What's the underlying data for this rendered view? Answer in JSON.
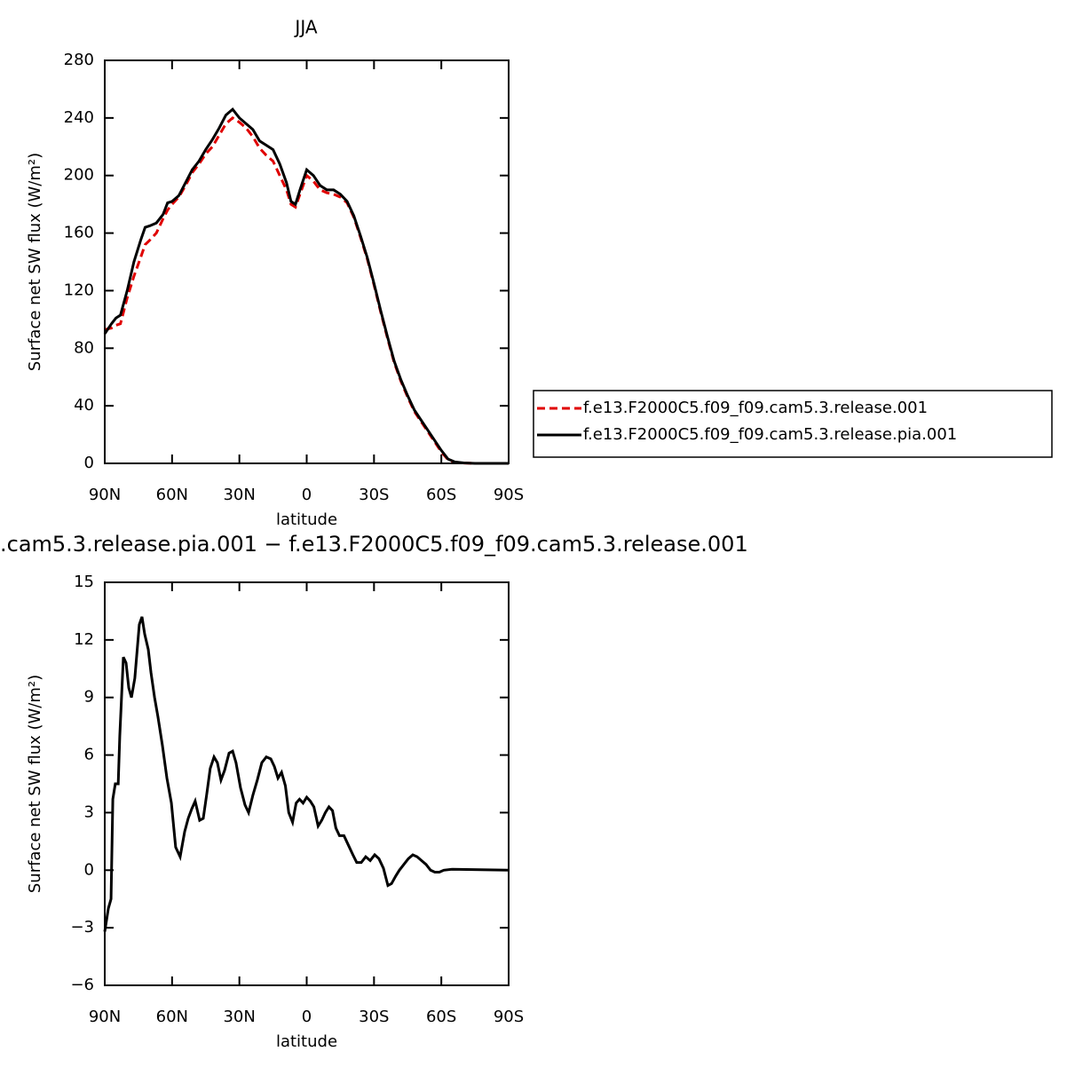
{
  "chart_data": [
    {
      "type": "line",
      "title": "JJA",
      "xlabel": "latitude",
      "ylabel": "Surface net SW flux (W/m²)",
      "xlim": [
        90,
        -90
      ],
      "ylim": [
        0,
        280
      ],
      "xticks": [
        {
          "value": 90,
          "label": "90N"
        },
        {
          "value": 60,
          "label": "60N"
        },
        {
          "value": 30,
          "label": "30N"
        },
        0,
        {
          "value": -30,
          "label": "30S"
        },
        {
          "value": -60,
          "label": "60S"
        },
        {
          "value": -90,
          "label": "90S"
        }
      ],
      "yticks": [
        0,
        40,
        80,
        120,
        160,
        200,
        240,
        280
      ],
      "legend": "right",
      "x": [
        90,
        87,
        85,
        83,
        80,
        77,
        74,
        72,
        70,
        67,
        64,
        62,
        60,
        57,
        54,
        51,
        48,
        45,
        42,
        39,
        36,
        33,
        30,
        27,
        24,
        21,
        18,
        15,
        12,
        9,
        7,
        5,
        3,
        0,
        -3,
        -6,
        -9,
        -12,
        -15,
        -18,
        -21,
        -24,
        -27,
        -30,
        -33,
        -36,
        -39,
        -42,
        -45,
        -48,
        -51,
        -54,
        -57,
        -60,
        -63,
        -66,
        -70,
        -75,
        -80,
        -85,
        -90
      ],
      "series": [
        {
          "name": "f.e13.F2000C5.f09_f09.cam5.3.release.001",
          "color": "#e00000",
          "dash": true,
          "values": [
            93,
            94,
            96,
            97,
            115,
            130,
            143,
            152,
            155,
            160,
            170,
            176,
            180,
            185,
            193,
            202,
            208,
            215,
            220,
            228,
            236,
            240,
            237,
            233,
            227,
            219,
            214,
            210,
            200,
            190,
            180,
            178,
            187,
            200,
            196,
            190,
            188,
            187,
            185,
            181,
            171,
            157,
            142,
            124,
            105,
            87,
            70,
            57,
            46,
            36,
            29,
            22,
            15,
            8,
            2.5,
            0.8,
            0.2,
            0,
            0,
            0,
            0
          ]
        },
        {
          "name": "f.e13.F2000C5.f09_f09.cam5.3.release.pia.001",
          "color": "#000000",
          "dash": false,
          "values": [
            90,
            97,
            101,
            103,
            120,
            140,
            155,
            164,
            165,
            167,
            173,
            181,
            182,
            186,
            195,
            204,
            210,
            218,
            225,
            233,
            242,
            246,
            240,
            236,
            232,
            224,
            221,
            218,
            208,
            195,
            182,
            180,
            190,
            204,
            200,
            193,
            190,
            190,
            187,
            182,
            172,
            158,
            143,
            125,
            106,
            88,
            71,
            58,
            47,
            37,
            30,
            23,
            16,
            9,
            3,
            1,
            0.3,
            0,
            0,
            0,
            0
          ]
        }
      ]
    },
    {
      "type": "line",
      "title": ".cam5.3.release.pia.001 − f.e13.F2000C5.f09_f09.cam5.3.release.001",
      "xlabel": "latitude",
      "ylabel": "Surface net SW flux (W/m²)",
      "xlim": [
        90,
        -90
      ],
      "ylim": [
        -6,
        15
      ],
      "xticks": [
        {
          "value": 90,
          "label": "90N"
        },
        {
          "value": 60,
          "label": "60N"
        },
        {
          "value": 30,
          "label": "30N"
        },
        0,
        {
          "value": -30,
          "label": "30S"
        },
        {
          "value": -60,
          "label": "60S"
        },
        {
          "value": -90,
          "label": "90S"
        }
      ],
      "yticks": [
        {
          "value": -6,
          "label": "−6"
        },
        {
          "value": -3,
          "label": "−3"
        },
        0,
        3,
        6,
        9,
        12,
        15
      ],
      "x": [
        90,
        88.4,
        87.2,
        86.4,
        85.3,
        84,
        83.3,
        81.7,
        80.5,
        79.3,
        78.1,
        76.6,
        74.6,
        73.4,
        72.2,
        70.6,
        69.4,
        67.8,
        66.3,
        64.3,
        62.3,
        60.3,
        58.4,
        56.4,
        54.4,
        52.8,
        51.2,
        49.7,
        47.7,
        46.1,
        44.5,
        43,
        41.3,
        39.8,
        38.2,
        36.6,
        34.6,
        33,
        31.5,
        29.5,
        27.5,
        25.9,
        24,
        22,
        20,
        18,
        16,
        14.4,
        12.8,
        11.2,
        9.5,
        8,
        6.3,
        4.7,
        3.2,
        1.6,
        0,
        -1.6,
        -3.2,
        -5.1,
        -6.7,
        -8.3,
        -9.9,
        -11.5,
        -13,
        -14.6,
        -16.6,
        -18.6,
        -20.6,
        -22.3,
        -24.3,
        -26.3,
        -28.3,
        -30.3,
        -32.2,
        -34.2,
        -36.2,
        -37.8,
        -39.7,
        -41.3,
        -43.3,
        -45.3,
        -47.3,
        -49.2,
        -51.2,
        -53.2,
        -55.2,
        -57.1,
        -59.1,
        -61.1,
        -65,
        -90
      ],
      "series": [
        {
          "color": "#000000",
          "dash": false,
          "values": [
            -3.2,
            -2,
            -1.5,
            3.7,
            4.5,
            4.5,
            7,
            11.1,
            10.8,
            9.5,
            9,
            10,
            12.8,
            13.2,
            12.3,
            11.5,
            10.3,
            9,
            8,
            6.5,
            4.8,
            3.5,
            1.2,
            0.7,
            2,
            2.7,
            3.2,
            3.6,
            2.6,
            2.7,
            4,
            5.3,
            5.9,
            5.6,
            4.7,
            5.2,
            6.1,
            6.2,
            5.6,
            4.3,
            3.4,
            3,
            3.9,
            4.7,
            5.6,
            5.9,
            5.8,
            5.4,
            4.8,
            5.1,
            4.4,
            3,
            2.5,
            3.5,
            3.7,
            3.5,
            3.8,
            3.6,
            3.3,
            2.3,
            2.6,
            3,
            3.3,
            3.1,
            2.2,
            1.8,
            1.8,
            1.3,
            0.8,
            0.4,
            0.4,
            0.7,
            0.5,
            0.8,
            0.6,
            0.1,
            -0.8,
            -0.7,
            -0.3,
            0,
            0.3,
            0.6,
            0.8,
            0.7,
            0.5,
            0.3,
            0,
            -0.1,
            -0.1,
            0,
            0.05,
            0
          ]
        }
      ]
    }
  ]
}
